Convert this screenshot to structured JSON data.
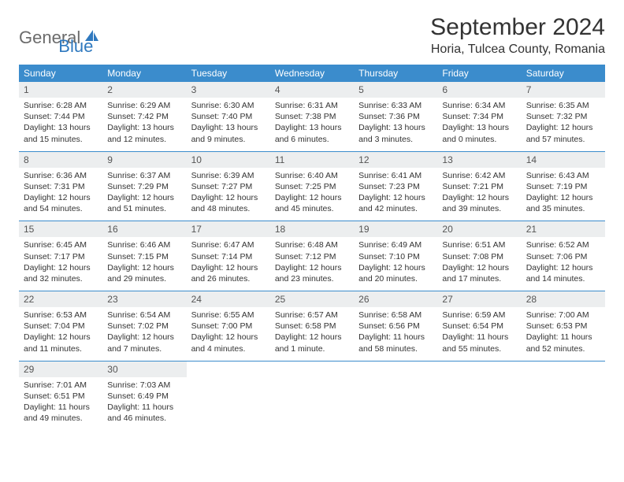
{
  "logo": {
    "text1": "General",
    "text2": "Blue"
  },
  "title": "September 2024",
  "location": "Horia, Tulcea County, Romania",
  "colors": {
    "header_bg": "#3b8ccc",
    "header_text": "#ffffff",
    "daynum_bg": "#eceeef",
    "border": "#3b8ccc",
    "logo_gray": "#6b6b6b",
    "logo_blue": "#2f79bf"
  },
  "day_names": [
    "Sunday",
    "Monday",
    "Tuesday",
    "Wednesday",
    "Thursday",
    "Friday",
    "Saturday"
  ],
  "days": [
    {
      "n": "1",
      "sr": "Sunrise: 6:28 AM",
      "ss": "Sunset: 7:44 PM",
      "dl1": "Daylight: 13 hours",
      "dl2": "and 15 minutes."
    },
    {
      "n": "2",
      "sr": "Sunrise: 6:29 AM",
      "ss": "Sunset: 7:42 PM",
      "dl1": "Daylight: 13 hours",
      "dl2": "and 12 minutes."
    },
    {
      "n": "3",
      "sr": "Sunrise: 6:30 AM",
      "ss": "Sunset: 7:40 PM",
      "dl1": "Daylight: 13 hours",
      "dl2": "and 9 minutes."
    },
    {
      "n": "4",
      "sr": "Sunrise: 6:31 AM",
      "ss": "Sunset: 7:38 PM",
      "dl1": "Daylight: 13 hours",
      "dl2": "and 6 minutes."
    },
    {
      "n": "5",
      "sr": "Sunrise: 6:33 AM",
      "ss": "Sunset: 7:36 PM",
      "dl1": "Daylight: 13 hours",
      "dl2": "and 3 minutes."
    },
    {
      "n": "6",
      "sr": "Sunrise: 6:34 AM",
      "ss": "Sunset: 7:34 PM",
      "dl1": "Daylight: 13 hours",
      "dl2": "and 0 minutes."
    },
    {
      "n": "7",
      "sr": "Sunrise: 6:35 AM",
      "ss": "Sunset: 7:32 PM",
      "dl1": "Daylight: 12 hours",
      "dl2": "and 57 minutes."
    },
    {
      "n": "8",
      "sr": "Sunrise: 6:36 AM",
      "ss": "Sunset: 7:31 PM",
      "dl1": "Daylight: 12 hours",
      "dl2": "and 54 minutes."
    },
    {
      "n": "9",
      "sr": "Sunrise: 6:37 AM",
      "ss": "Sunset: 7:29 PM",
      "dl1": "Daylight: 12 hours",
      "dl2": "and 51 minutes."
    },
    {
      "n": "10",
      "sr": "Sunrise: 6:39 AM",
      "ss": "Sunset: 7:27 PM",
      "dl1": "Daylight: 12 hours",
      "dl2": "and 48 minutes."
    },
    {
      "n": "11",
      "sr": "Sunrise: 6:40 AM",
      "ss": "Sunset: 7:25 PM",
      "dl1": "Daylight: 12 hours",
      "dl2": "and 45 minutes."
    },
    {
      "n": "12",
      "sr": "Sunrise: 6:41 AM",
      "ss": "Sunset: 7:23 PM",
      "dl1": "Daylight: 12 hours",
      "dl2": "and 42 minutes."
    },
    {
      "n": "13",
      "sr": "Sunrise: 6:42 AM",
      "ss": "Sunset: 7:21 PM",
      "dl1": "Daylight: 12 hours",
      "dl2": "and 39 minutes."
    },
    {
      "n": "14",
      "sr": "Sunrise: 6:43 AM",
      "ss": "Sunset: 7:19 PM",
      "dl1": "Daylight: 12 hours",
      "dl2": "and 35 minutes."
    },
    {
      "n": "15",
      "sr": "Sunrise: 6:45 AM",
      "ss": "Sunset: 7:17 PM",
      "dl1": "Daylight: 12 hours",
      "dl2": "and 32 minutes."
    },
    {
      "n": "16",
      "sr": "Sunrise: 6:46 AM",
      "ss": "Sunset: 7:15 PM",
      "dl1": "Daylight: 12 hours",
      "dl2": "and 29 minutes."
    },
    {
      "n": "17",
      "sr": "Sunrise: 6:47 AM",
      "ss": "Sunset: 7:14 PM",
      "dl1": "Daylight: 12 hours",
      "dl2": "and 26 minutes."
    },
    {
      "n": "18",
      "sr": "Sunrise: 6:48 AM",
      "ss": "Sunset: 7:12 PM",
      "dl1": "Daylight: 12 hours",
      "dl2": "and 23 minutes."
    },
    {
      "n": "19",
      "sr": "Sunrise: 6:49 AM",
      "ss": "Sunset: 7:10 PM",
      "dl1": "Daylight: 12 hours",
      "dl2": "and 20 minutes."
    },
    {
      "n": "20",
      "sr": "Sunrise: 6:51 AM",
      "ss": "Sunset: 7:08 PM",
      "dl1": "Daylight: 12 hours",
      "dl2": "and 17 minutes."
    },
    {
      "n": "21",
      "sr": "Sunrise: 6:52 AM",
      "ss": "Sunset: 7:06 PM",
      "dl1": "Daylight: 12 hours",
      "dl2": "and 14 minutes."
    },
    {
      "n": "22",
      "sr": "Sunrise: 6:53 AM",
      "ss": "Sunset: 7:04 PM",
      "dl1": "Daylight: 12 hours",
      "dl2": "and 11 minutes."
    },
    {
      "n": "23",
      "sr": "Sunrise: 6:54 AM",
      "ss": "Sunset: 7:02 PM",
      "dl1": "Daylight: 12 hours",
      "dl2": "and 7 minutes."
    },
    {
      "n": "24",
      "sr": "Sunrise: 6:55 AM",
      "ss": "Sunset: 7:00 PM",
      "dl1": "Daylight: 12 hours",
      "dl2": "and 4 minutes."
    },
    {
      "n": "25",
      "sr": "Sunrise: 6:57 AM",
      "ss": "Sunset: 6:58 PM",
      "dl1": "Daylight: 12 hours",
      "dl2": "and 1 minute."
    },
    {
      "n": "26",
      "sr": "Sunrise: 6:58 AM",
      "ss": "Sunset: 6:56 PM",
      "dl1": "Daylight: 11 hours",
      "dl2": "and 58 minutes."
    },
    {
      "n": "27",
      "sr": "Sunrise: 6:59 AM",
      "ss": "Sunset: 6:54 PM",
      "dl1": "Daylight: 11 hours",
      "dl2": "and 55 minutes."
    },
    {
      "n": "28",
      "sr": "Sunrise: 7:00 AM",
      "ss": "Sunset: 6:53 PM",
      "dl1": "Daylight: 11 hours",
      "dl2": "and 52 minutes."
    },
    {
      "n": "29",
      "sr": "Sunrise: 7:01 AM",
      "ss": "Sunset: 6:51 PM",
      "dl1": "Daylight: 11 hours",
      "dl2": "and 49 minutes."
    },
    {
      "n": "30",
      "sr": "Sunrise: 7:03 AM",
      "ss": "Sunset: 6:49 PM",
      "dl1": "Daylight: 11 hours",
      "dl2": "and 46 minutes."
    }
  ]
}
